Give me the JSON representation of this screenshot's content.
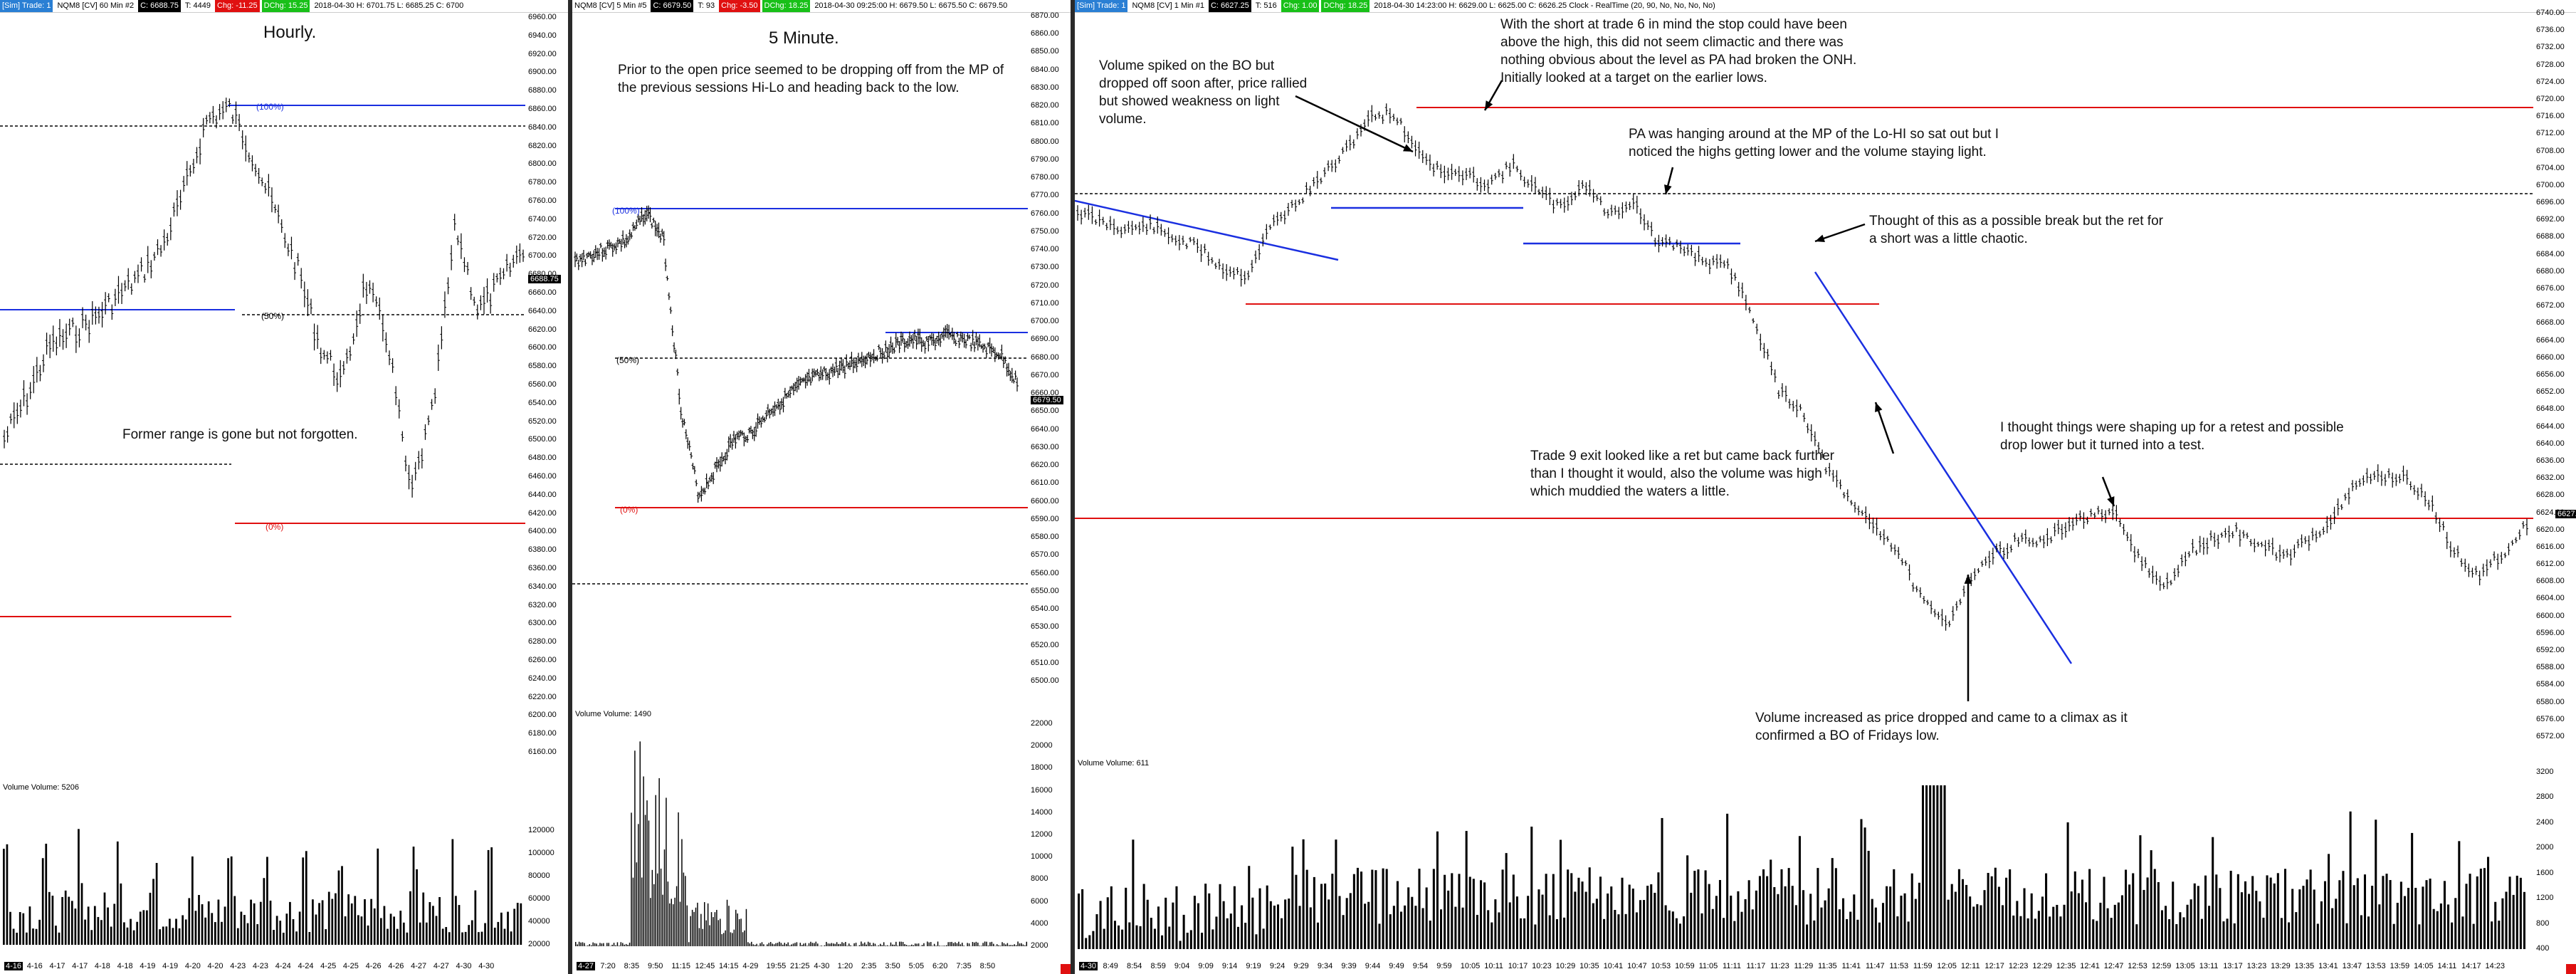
{
  "hourly": {
    "header": {
      "tag": "[Sim] Trade: 1",
      "symbol": "NQM8 [CV]  60 Min  #2",
      "last": "C: 6688.75",
      "range_ticks": "T: 4449",
      "chg": "Chg: -11.25",
      "pct": "DChg: 15.25",
      "ohlc": "2018-04-30  H: 6701.75  L: 6685.25  C: 6700"
    },
    "title": "Hourly.",
    "note": "Former range is gone but not forgotten.",
    "pct_100": "(100%)",
    "pct_50": "(50%)",
    "pct_0": "(0%)",
    "price_tag": "6688.75",
    "volume_label": "Volume  Volume: 5206",
    "axis_ticks": [
      "6960.00",
      "6940.00",
      "6920.00",
      "6900.00",
      "6880.00",
      "6860.00",
      "6840.00",
      "6820.00",
      "6800.00",
      "6780.00",
      "6760.00",
      "6740.00",
      "6720.00",
      "6700.00",
      "6680.00",
      "6660.00",
      "6640.00",
      "6620.00",
      "6600.00",
      "6580.00",
      "6560.00",
      "6540.00",
      "6520.00",
      "6500.00",
      "6480.00",
      "6460.00",
      "6440.00",
      "6420.00",
      "6400.00",
      "6380.00",
      "6360.00",
      "6340.00",
      "6320.00",
      "6300.00",
      "6280.00",
      "6260.00",
      "6240.00",
      "6220.00",
      "6200.00",
      "6180.00",
      "6160.00"
    ],
    "vol_ticks": [
      "120000",
      "100000",
      "80000",
      "60000",
      "40000",
      "20000"
    ],
    "time_labels": [
      "4-16",
      "4-16",
      "4-17",
      "4-17",
      "4-18",
      "4-18",
      "4-19",
      "4-19",
      "4-20",
      "4-20",
      "4-23",
      "4-23",
      "4-24",
      "4-24",
      "4-25",
      "4-25",
      "4-26",
      "4-26",
      "4-27",
      "4-27",
      "4-30",
      "4-30"
    ]
  },
  "five": {
    "header": {
      "symbol": "NQM8 [CV]  5 Min  #5",
      "last": "C: 6679.50",
      "range_ticks": "T: 93",
      "chg": "Chg: -3.50",
      "pct": "DChg: 18.25",
      "ohlc": "2018-04-30  09:25:00  H: 6679.50  L: 6675.50  C: 6679.50"
    },
    "title": "5 Minute.",
    "note": "Prior to the open price seemed to be dropping off from the MP of the previous sessions Hi-Lo and heading back to the low.",
    "pct_100": "(100%)",
    "pct_50": "(50%)",
    "pct_0": "(0%)",
    "price_tag": "6679.50",
    "volume_label": "Volume  Volume: 1490",
    "axis_ticks": [
      "6870.00",
      "6860.00",
      "6850.00",
      "6840.00",
      "6830.00",
      "6820.00",
      "6810.00",
      "6800.00",
      "6790.00",
      "6780.00",
      "6770.00",
      "6760.00",
      "6750.00",
      "6740.00",
      "6730.00",
      "6720.00",
      "6710.00",
      "6700.00",
      "6690.00",
      "6680.00",
      "6670.00",
      "6660.00",
      "6650.00",
      "6640.00",
      "6630.00",
      "6620.00",
      "6610.00",
      "6600.00",
      "6590.00",
      "6580.00",
      "6570.00",
      "6560.00",
      "6550.00",
      "6540.00",
      "6530.00",
      "6520.00",
      "6510.00",
      "6500.00"
    ],
    "vol_ticks": [
      "22000",
      "20000",
      "18000",
      "16000",
      "14000",
      "12000",
      "10000",
      "8000",
      "6000",
      "4000",
      "2000"
    ],
    "time_labels": [
      "4-27",
      "7:20",
      "8:35",
      "9:50",
      "11:15",
      "12:45",
      "14:15",
      "4-29",
      "19:55",
      "21:25",
      "4-30",
      "1:20",
      "2:35",
      "3:50",
      "5:05",
      "6:20",
      "7:35",
      "8:50"
    ]
  },
  "one": {
    "header": {
      "tag": "[Sim] Trade: 1",
      "symbol": "NQM8 [CV]  1 Min  #1",
      "last": "C: 6627.25",
      "range_ticks": "T: 516",
      "chg": "Chg: 1.00",
      "pct": "DChg: 18.25",
      "ohlc": "2018-04-30  14:23:00  H: 6629.00  L: 6625.00  C: 6626.25  Clock - RealTime   (20, 90, No, No, No, No)"
    },
    "notes": {
      "volume_spike": "Volume spiked on the BO but dropped off soon after, price rallied but showed weakness on light volume.",
      "short_trade6": "With the short at trade 6 in mind the stop could have been above the high, this did not seem climactic and there was nothing obvious about the level as PA had broken the ONH. Initially looked at a target on the earlier lows.",
      "pa_mp": "PA was hanging around at the MP of the Lo-HI so sat out but I noticed the highs getting lower and the volume staying light.",
      "possible_break": "Thought of this as a possible break but the ret for a short was a little chaotic.",
      "trade9": "Trade 9 exit looked like a ret but came back further than I thought it would, also the volume was high which muddied the waters a little.",
      "retest": "I thought things were shaping up for a retest and possible drop lower but it turned into a test.",
      "climax": "Volume increased as price dropped and came to a climax as it confirmed a BO of Fridays low."
    },
    "price_tag": "6627.25",
    "volume_label": "Volume  Volume: 611",
    "axis_ticks": [
      "6740.00",
      "6736.00",
      "6732.00",
      "6728.00",
      "6724.00",
      "6720.00",
      "6716.00",
      "6712.00",
      "6708.00",
      "6704.00",
      "6700.00",
      "6696.00",
      "6692.00",
      "6688.00",
      "6684.00",
      "6680.00",
      "6676.00",
      "6672.00",
      "6668.00",
      "6664.00",
      "6660.00",
      "6656.00",
      "6652.00",
      "6648.00",
      "6644.00",
      "6640.00",
      "6636.00",
      "6632.00",
      "6628.00",
      "6624.00",
      "6620.00",
      "6616.00",
      "6612.00",
      "6608.00",
      "6604.00",
      "6600.00",
      "6596.00",
      "6592.00",
      "6588.00",
      "6584.00",
      "6580.00",
      "6576.00",
      "6572.00"
    ],
    "vol_ticks": [
      "3200",
      "2800",
      "2400",
      "2000",
      "1600",
      "1200",
      "800",
      "400"
    ],
    "time_labels": [
      "4-30",
      "8:49",
      "8:54",
      "8:59",
      "9:04",
      "9:09",
      "9:14",
      "9:19",
      "9:24",
      "9:29",
      "9:34",
      "9:39",
      "9:44",
      "9:49",
      "9:54",
      "9:59",
      "10:05",
      "10:11",
      "10:17",
      "10:23",
      "10:29",
      "10:35",
      "10:41",
      "10:47",
      "10:53",
      "10:59",
      "11:05",
      "11:11",
      "11:17",
      "11:23",
      "11:29",
      "11:35",
      "11:41",
      "11:47",
      "11:53",
      "11:59",
      "12:05",
      "12:11",
      "12:17",
      "12:23",
      "12:29",
      "12:35",
      "12:41",
      "12:47",
      "12:53",
      "12:59",
      "13:05",
      "13:11",
      "13:17",
      "13:23",
      "13:29",
      "13:35",
      "13:41",
      "13:47",
      "13:53",
      "13:59",
      "14:05",
      "14:11",
      "14:17",
      "14:23"
    ]
  },
  "colors": {
    "blue": "#1a2fe0",
    "red": "#e01010",
    "black": "#000000"
  }
}
